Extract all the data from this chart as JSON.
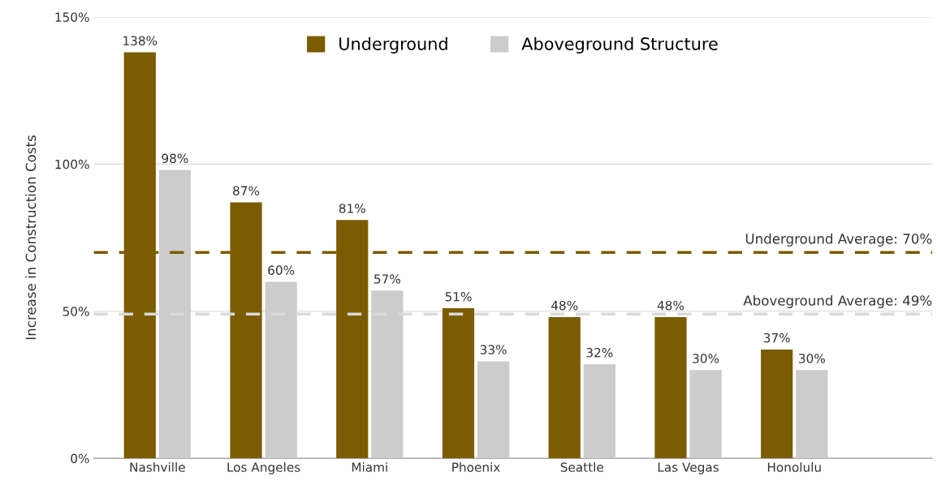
{
  "chart_data": {
    "type": "bar",
    "ylabel": "Increase in Construction Costs",
    "categories": [
      "Nashville",
      "Los Angeles",
      "Miami",
      "Phoenix",
      "Seattle",
      "Las Vegas",
      "Honolulu"
    ],
    "series": [
      {
        "name": "Underground",
        "color": "#7b5c00",
        "values": [
          138,
          87,
          81,
          51,
          48,
          48,
          37
        ],
        "value_labels": [
          "138%",
          "87%",
          "81%",
          "51%",
          "48%",
          "48%",
          "37%"
        ]
      },
      {
        "name": "Aboveground Structure",
        "color": "#cccccc",
        "values": [
          98,
          60,
          57,
          33,
          32,
          30,
          30
        ],
        "value_labels": [
          "98%",
          "60%",
          "57%",
          "33%",
          "32%",
          "30%",
          "30%"
        ]
      }
    ],
    "ylim": [
      0,
      150
    ],
    "yticks": [
      {
        "value": 0,
        "label": "0%"
      },
      {
        "value": 50,
        "label": "50%"
      },
      {
        "value": 100,
        "label": "100%"
      },
      {
        "value": 150,
        "label": "150%"
      }
    ],
    "ref_lines": [
      {
        "axis": "y",
        "value": 70,
        "label": "Underground Average: 70%",
        "color": "#7b5c00",
        "line_style": "dashed"
      },
      {
        "axis": "y",
        "value": 49,
        "label": "Aboveground Average: 49%",
        "color": "#d9d9d9",
        "line_style": "dashed"
      }
    ],
    "grid": "y",
    "legend": "top"
  }
}
